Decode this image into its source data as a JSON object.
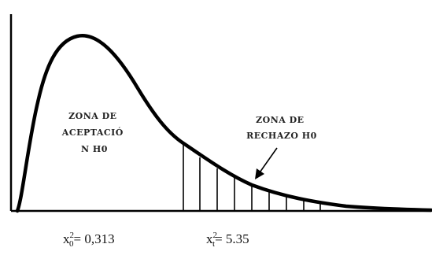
{
  "diagram": {
    "acceptance_zone": {
      "lines": [
        "ZONA DE",
        "ACEPTACIÓ",
        "N H0"
      ]
    },
    "rejection_zone": {
      "lines": [
        "ZONA DE",
        "RECHAZO H0"
      ]
    },
    "stat_calc": {
      "symbol": "x",
      "superscript": "2",
      "subscript": "0",
      "value_text": "= 0,313"
    },
    "stat_table": {
      "symbol": "x",
      "superscript": "2",
      "subscript": "t",
      "value_text": "= 5.35"
    }
  }
}
